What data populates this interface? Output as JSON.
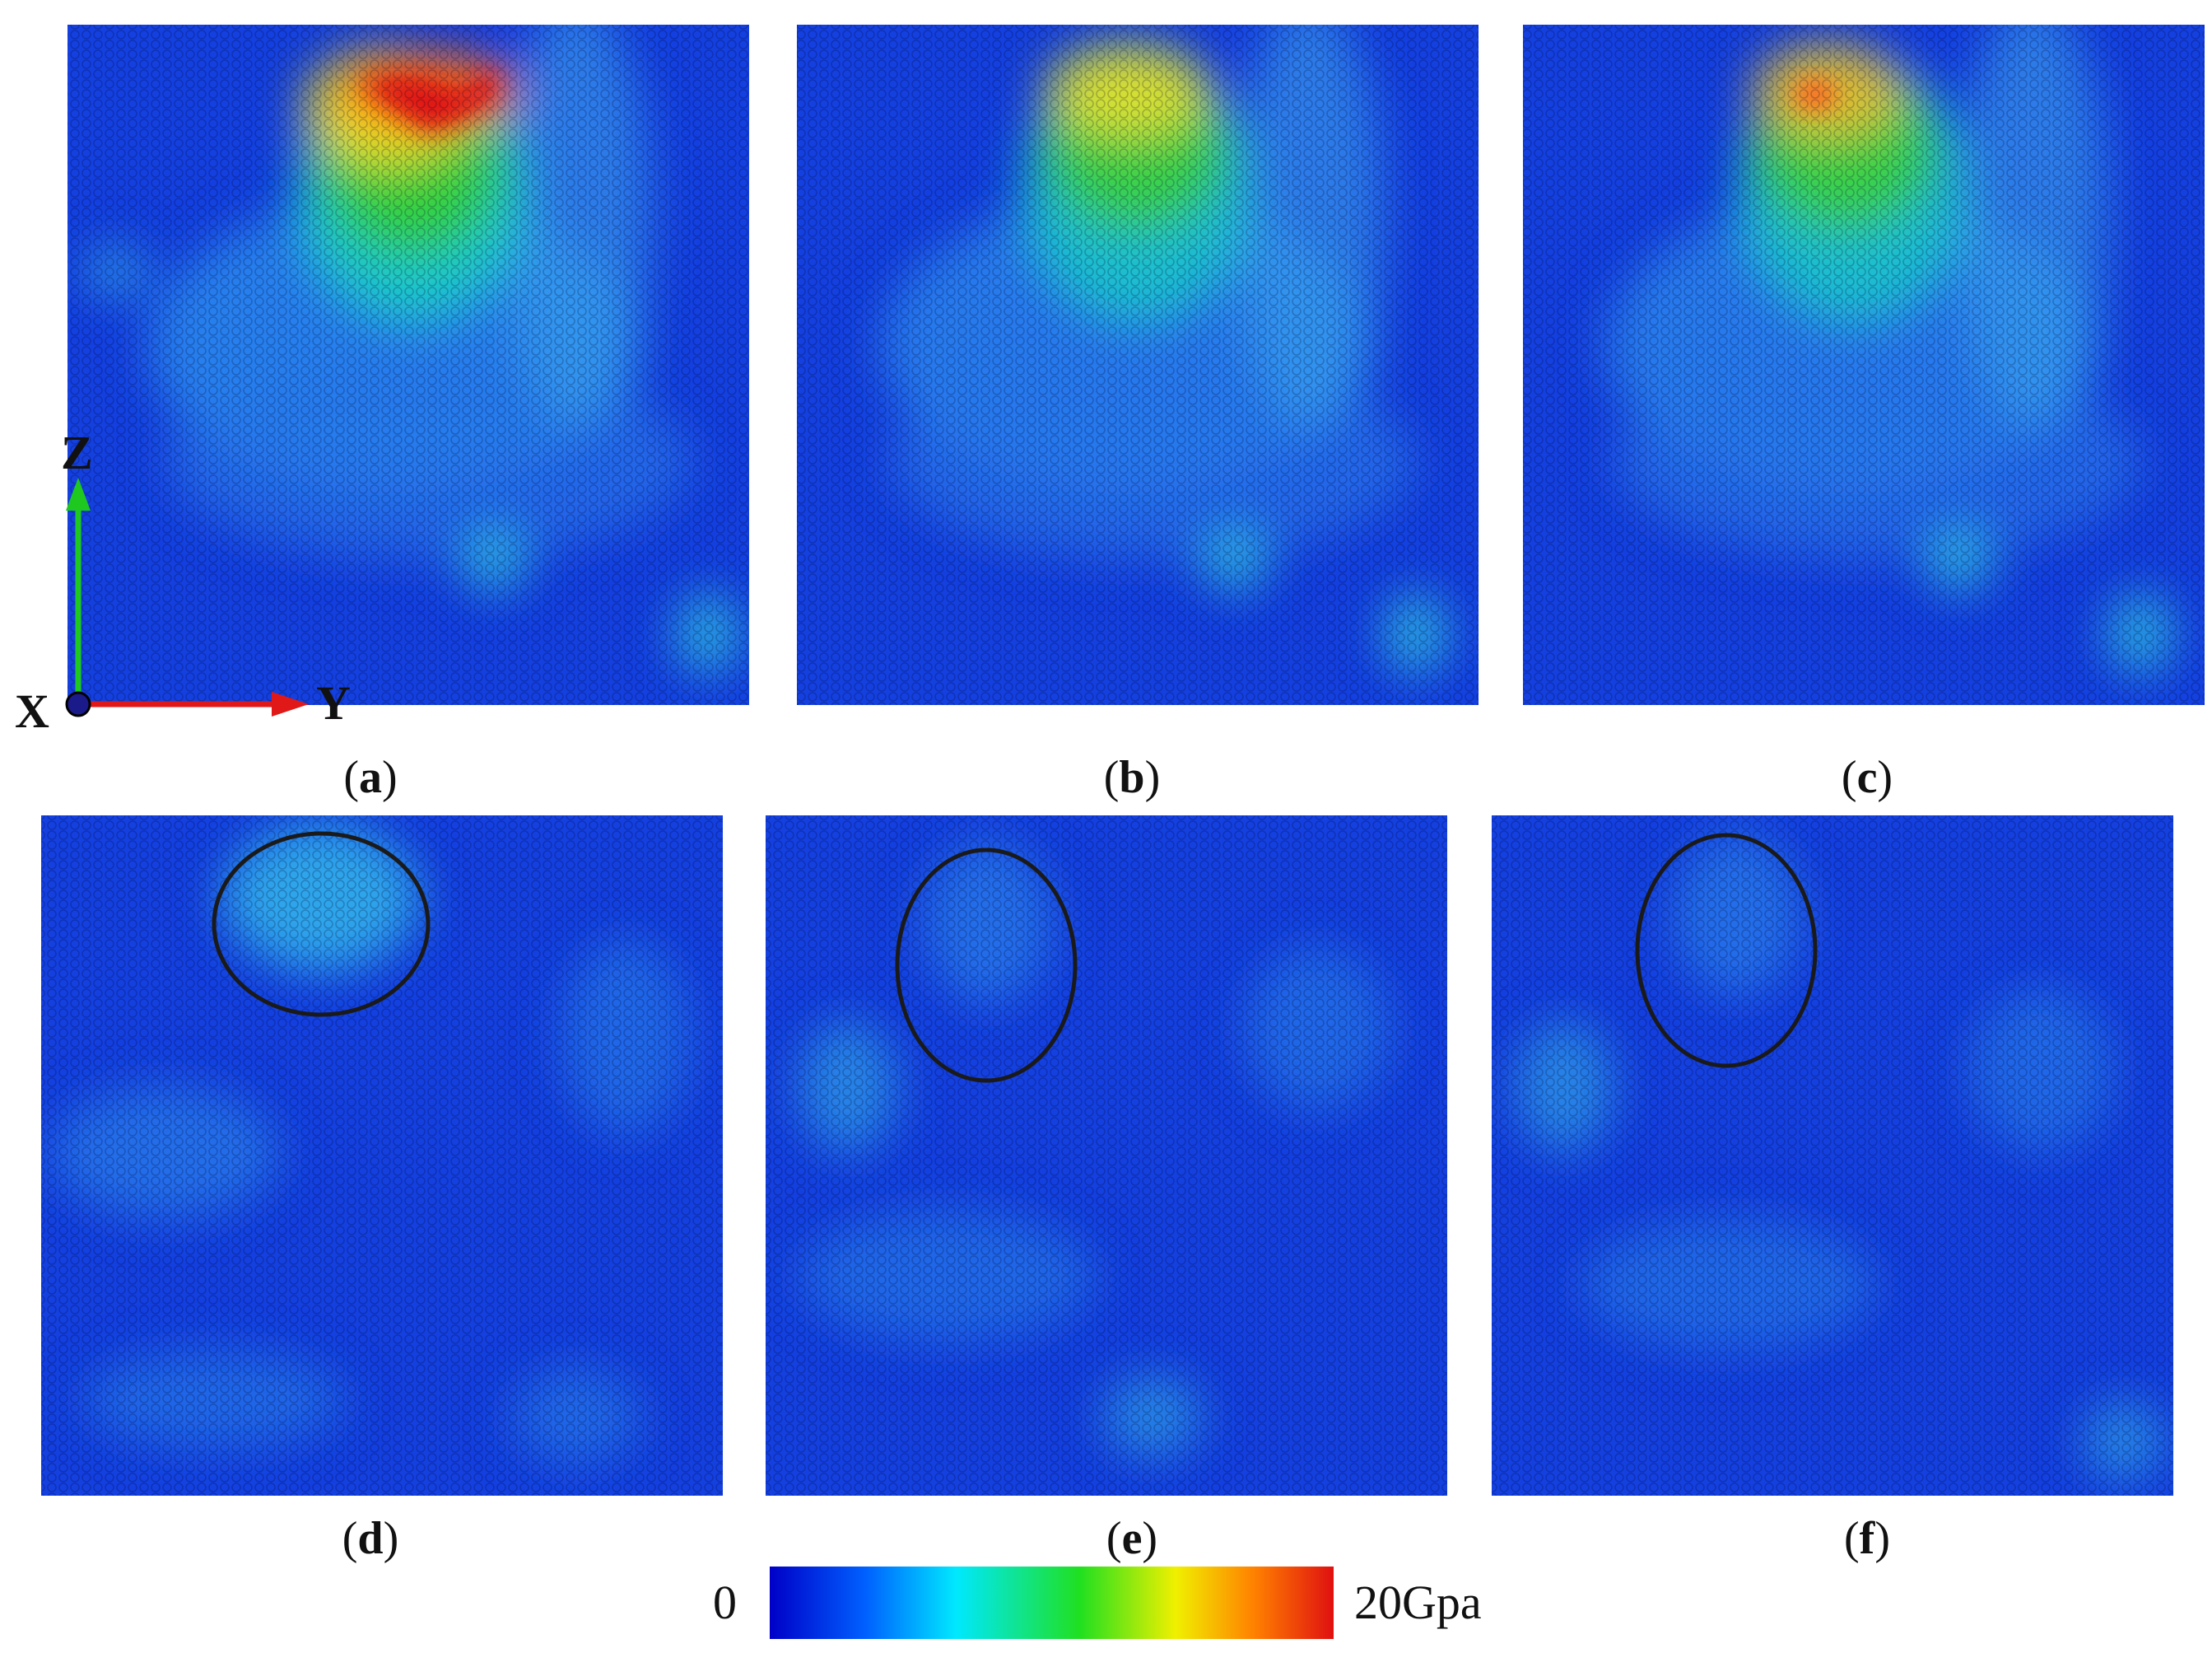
{
  "panels": [
    {
      "label": "a",
      "peak": 1.0
    },
    {
      "label": "b",
      "peak": 0.72
    },
    {
      "label": "c",
      "peak": 0.78
    },
    {
      "label": "d",
      "peak": 0.0
    },
    {
      "label": "e",
      "peak": 0.0
    },
    {
      "label": "f",
      "peak": 0.0
    }
  ],
  "axes": {
    "z": "Z",
    "x": "X",
    "y": "Y",
    "z_color": "#1ec81e",
    "y_color": "#e01818",
    "x_color": "#1a1a8a"
  },
  "colorbar": {
    "min_label": "0",
    "max_label": "20Gpa",
    "colors": [
      "#0000c8",
      "#0060ff",
      "#00e8ff",
      "#20e020",
      "#f0f000",
      "#ff8000",
      "#e01010"
    ]
  },
  "ellipse_color": "#1a1a1a"
}
